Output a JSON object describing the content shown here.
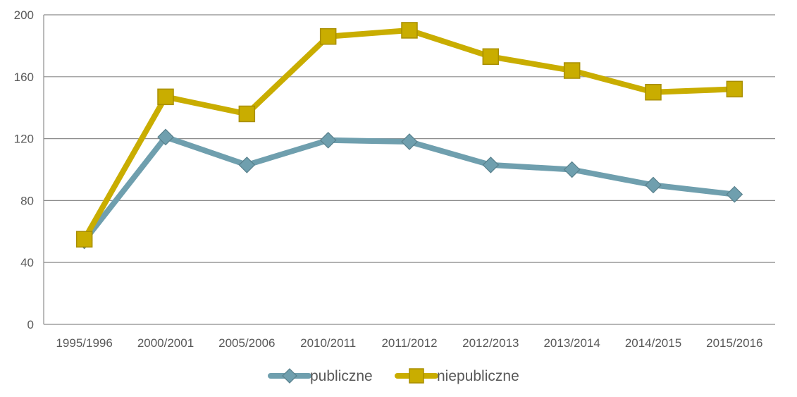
{
  "chart_data": {
    "type": "line",
    "title": "",
    "xlabel": "",
    "ylabel": "",
    "categories": [
      "1995/1996",
      "2000/2001",
      "2005/2006",
      "2010/2011",
      "2011/2012",
      "2012/2013",
      "2013/2014",
      "2014/2015",
      "2015/2016"
    ],
    "ylim": [
      0,
      200
    ],
    "yticks": [
      0,
      40,
      80,
      120,
      160,
      200
    ],
    "grid": true,
    "legend_position": "bottom",
    "series": [
      {
        "name": "publiczne",
        "values": [
          54,
          121,
          103,
          119,
          118,
          103,
          100,
          90,
          84
        ],
        "color": "#6f9fae",
        "marker": "diamond"
      },
      {
        "name": "niepubliczne",
        "values": [
          55,
          147,
          136,
          186,
          190,
          173,
          164,
          150,
          152
        ],
        "color": "#c9ad00",
        "marker": "square"
      }
    ]
  }
}
